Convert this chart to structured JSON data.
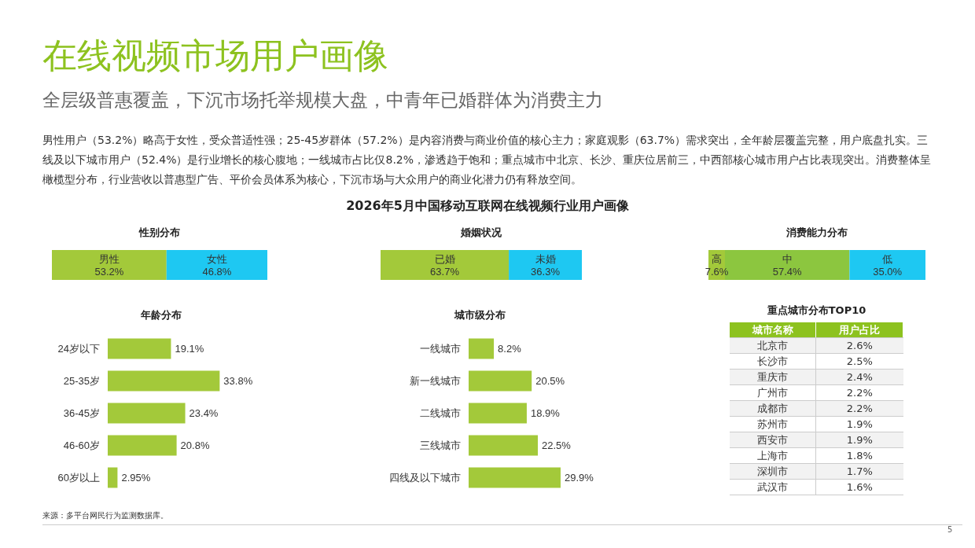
{
  "chart_data": [
    {
      "type": "other",
      "title": "在线视频市场用户画像",
      "subtitle": "全层级普惠覆盖，下沉市场托举规模大盘，中青年已婚群体为消费主力",
      "annotations": [
        "男性用户（53.2%）略高于女性，受众普适性强；25-45岁群体（57.2%）是内容消费与商业价值的核心主力；家庭观影（63.7%）需求突出，全年龄层覆盖完整，用户底盘扎实。三线及以下城市用户（52.4%）是行业增长的核心腹地；一线城市占比仅8.2%，渗透趋于饱和；重点城市中北京、长沙、重庆位居前三，中西部核心城市用户占比表现突出。消费整体呈橄榄型分布，行业营收以普惠型广告、平价会员体系为核心，下沉市场与大众用户的商业化潜力仍有释放空间。",
        "2026年5月中国移动互联网在线视频行业用户画像",
        "来源：多平台网民行为监测数据库。",
        "5"
      ]
    },
    {
      "type": "bar",
      "title": "性别分布",
      "orientation": "horizontal",
      "stacked": true,
      "categories": [
        null
      ],
      "xlim": [
        0,
        100
      ],
      "tick_labels": false,
      "series": [
        {
          "name": "男性",
          "color": "#a3c93a",
          "values": [
            53.2
          ],
          "value_labels": [
            "53.2%"
          ]
        },
        {
          "name": "女性",
          "color": "#1ec8f2",
          "values": [
            46.8
          ],
          "value_labels": [
            "46.8%"
          ]
        }
      ]
    },
    {
      "type": "bar",
      "title": "婚姻状况",
      "orientation": "horizontal",
      "stacked": true,
      "categories": [
        null
      ],
      "xlim": [
        0,
        100
      ],
      "tick_labels": false,
      "series": [
        {
          "name": "已婚",
          "color": "#a3c93a",
          "values": [
            63.7
          ],
          "value_labels": [
            "63.7%"
          ]
        },
        {
          "name": "未婚",
          "color": "#1ec8f2",
          "values": [
            36.3
          ],
          "value_labels": [
            "36.3%"
          ]
        }
      ]
    },
    {
      "type": "bar",
      "title": "消费能力分布",
      "orientation": "horizontal",
      "stacked": true,
      "categories": [
        null
      ],
      "xlim": [
        0,
        100
      ],
      "tick_labels": false,
      "series": [
        {
          "name": "高",
          "color": "#a3c93a",
          "values": [
            7.6
          ],
          "value_labels": [
            "7.6%"
          ]
        },
        {
          "name": "中",
          "color": "#8cc63f",
          "values": [
            57.4
          ],
          "value_labels": [
            "57.4%"
          ]
        },
        {
          "name": "低",
          "color": "#1ec8f2",
          "values": [
            35.0
          ],
          "value_labels": [
            "35.0%"
          ]
        }
      ]
    },
    {
      "type": "bar",
      "title": "年龄分布",
      "orientation": "horizontal",
      "categories": [
        "24岁以下",
        "25-35岁",
        "36-45岁",
        "46-60岁",
        "60岁以上"
      ],
      "values": [
        19.1,
        33.8,
        23.4,
        20.8,
        2.95
      ],
      "value_labels": [
        "19.1%",
        "33.8%",
        "23.4%",
        "20.8%",
        "2.95%"
      ],
      "color": "#a3c93a",
      "tick_labels": "y"
    },
    {
      "type": "bar",
      "title": "城市级分布",
      "orientation": "horizontal",
      "categories": [
        "一线城市",
        "新一线城市",
        "二线城市",
        "三线城市",
        "四线及以下城市"
      ],
      "values": [
        8.2,
        20.5,
        18.9,
        22.5,
        29.9
      ],
      "value_labels": [
        "8.2%",
        "20.5%",
        "18.9%",
        "22.5%",
        "29.9%"
      ],
      "color": "#a3c93a",
      "tick_labels": "y"
    },
    {
      "type": "other",
      "title": "重点城市分布TOP10",
      "xlabel": "城市名称",
      "ylabel": "用户占比",
      "categories": [
        "北京市",
        "长沙市",
        "重庆市",
        "广州市",
        "成都市",
        "苏州市",
        "西安市",
        "上海市",
        "深圳市",
        "武汉市"
      ],
      "values": [
        2.6,
        2.5,
        2.4,
        2.2,
        2.2,
        1.9,
        1.9,
        1.8,
        1.7,
        1.6
      ],
      "value_labels": [
        "2.6%",
        "2.5%",
        "2.4%",
        "2.2%",
        "2.2%",
        "1.9%",
        "1.9%",
        "1.8%",
        "1.7%",
        "1.6%"
      ]
    }
  ]
}
